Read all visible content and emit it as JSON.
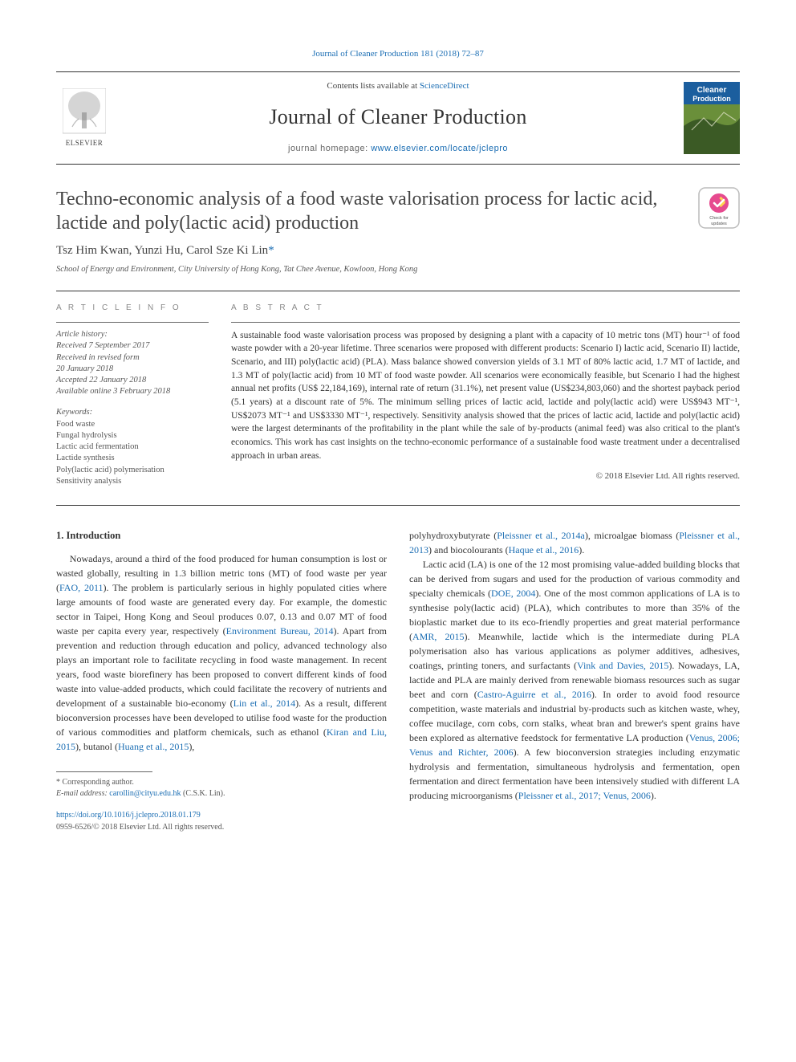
{
  "journal_ref": {
    "text": "Journal of Cleaner Production 181 (2018) 72–87",
    "link_color": "#1a6db3"
  },
  "header": {
    "contents_text": "Contents lists available at ",
    "contents_link": "ScienceDirect",
    "journal_name": "Journal of Cleaner Production",
    "homepage_label": "journal homepage: ",
    "homepage_url": "www.elsevier.com/locate/jclepro",
    "publisher_logo_text": "ELSEVIER",
    "cover": {
      "title_top": "Cleaner",
      "title_bottom": "Production",
      "bg_top": "#1b5e9e",
      "bg_mid": "#6a8f3a",
      "bg_bot": "#3b5a25"
    }
  },
  "title": "Techno-economic analysis of a food waste valorisation process for lactic acid, lactide and poly(lactic acid) production",
  "updates_badge_text": "Check for updates",
  "authors": "Tsz Him Kwan, Yunzi Hu, Carol Sze Ki Lin",
  "corr_marker": "*",
  "affiliation": "School of Energy and Environment, City University of Hong Kong, Tat Chee Avenue, Kowloon, Hong Kong",
  "article_info": {
    "heading": "a r t i c l e   i n f o",
    "history_label": "Article history:",
    "history": [
      "Received 7 September 2017",
      "Received in revised form",
      "20 January 2018",
      "Accepted 22 January 2018",
      "Available online 3 February 2018"
    ],
    "keywords_label": "Keywords:",
    "keywords": [
      "Food waste",
      "Fungal hydrolysis",
      "Lactic acid fermentation",
      "Lactide synthesis",
      "Poly(lactic acid) polymerisation",
      "Sensitivity analysis"
    ]
  },
  "abstract": {
    "heading": "a b s t r a c t",
    "text": "A sustainable food waste valorisation process was proposed by designing a plant with a capacity of 10 metric tons (MT) hour⁻¹ of food waste powder with a 20-year lifetime. Three scenarios were proposed with different products: Scenario I) lactic acid, Scenario II) lactide, Scenario, and III) poly(lactic acid) (PLA). Mass balance showed conversion yields of 3.1 MT of 80% lactic acid, 1.7 MT of lactide, and 1.3 MT of poly(lactic acid) from 10 MT of food waste powder. All scenarios were economically feasible, but Scenario I had the highest annual net profits (US$ 22,184,169), internal rate of return (31.1%), net present value (US$234,803,060) and the shortest payback period (5.1 years) at a discount rate of 5%. The minimum selling prices of lactic acid, lactide and poly(lactic acid) were US$943 MT⁻¹, US$2073 MT⁻¹ and US$3330 MT⁻¹, respectively. Sensitivity analysis showed that the prices of lactic acid, lactide and poly(lactic acid) were the largest determinants of the profitability in the plant while the sale of by-products (animal feed) was also critical to the plant's economics. This work has cast insights on the techno-economic performance of a sustainable food waste treatment under a decentralised approach in urban areas.",
    "copyright": "© 2018 Elsevier Ltd. All rights reserved."
  },
  "body": {
    "section_number": "1.",
    "section_title": "Introduction",
    "left_para": "Nowadays, around a third of the food produced for human consumption is lost or wasted globally, resulting in 1.3 billion metric tons (MT) of food waste per year (FAO, 2011). The problem is particularly serious in highly populated cities where large amounts of food waste are generated every day. For example, the domestic sector in Taipei, Hong Kong and Seoul produces 0.07, 0.13 and 0.07 MT of food waste per capita every year, respectively (Environment Bureau, 2014). Apart from prevention and reduction through education and policy, advanced technology also plays an important role to facilitate recycling in food waste management. In recent years, food waste biorefinery has been proposed to convert different kinds of food waste into value-added products, which could facilitate the recovery of nutrients and development of a sustainable bio-economy (Lin et al., 2014). As a result, different bioconversion processes have been developed to utilise food waste for the production of various commodities and platform chemicals, such as ethanol (Kiran and Liu, 2015), butanol (Huang et al., 2015),",
    "left_links": [
      "FAO, 2011",
      "Environment Bureau, 2014",
      "Lin et al., 2014",
      "Kiran and Liu, 2015",
      "Huang et al., 2015"
    ],
    "right_top": "polyhydroxybutyrate (Pleissner et al., 2014a), microalgae biomass (Pleissner et al., 2013) and biocolourants (Haque et al., 2016).",
    "right_para": "Lactic acid (LA) is one of the 12 most promising value-added building blocks that can be derived from sugars and used for the production of various commodity and specialty chemicals (DOE, 2004). One of the most common applications of LA is to synthesise poly(lactic acid) (PLA), which contributes to more than 35% of the bioplastic market due to its eco-friendly properties and great material performance (AMR, 2015). Meanwhile, lactide which is the intermediate during PLA polymerisation also has various applications as polymer additives, adhesives, coatings, printing toners, and surfactants (Vink and Davies, 2015). Nowadays, LA, lactide and PLA are mainly derived from renewable biomass resources such as sugar beet and corn (Castro-Aguirre et al., 2016). In order to avoid food resource competition, waste materials and industrial by-products such as kitchen waste, whey, coffee mucilage, corn cobs, corn stalks, wheat bran and brewer's spent grains have been explored as alternative feedstock for fermentative LA production (Venus, 2006; Venus and Richter, 2006). A few bioconversion strategies including enzymatic hydrolysis and fermentation, simultaneous hydrolysis and fermentation, open fermentation and direct fermentation have been intensively studied with different LA producing microorganisms (Pleissner et al., 2017; Venus, 2006).",
    "right_links": [
      "Pleissner et al., 2014a",
      "Pleissner et al., 2013",
      "Haque et al., 2016",
      "DOE, 2004",
      "AMR, 2015",
      "Vink and Davies, 2015",
      "Castro-Aguirre et al., 2016",
      "Venus, 2006; Venus and Richter, 2006",
      "Pleissner et al., 2017; Venus, 2006"
    ]
  },
  "footer": {
    "corr_label": "* Corresponding author.",
    "email_label": "E-mail address: ",
    "email": "carollin@cityu.edu.hk",
    "email_suffix": " (C.S.K. Lin).",
    "doi": "https://doi.org/10.1016/j.jclepro.2018.01.179",
    "issn": "0959-6526/© 2018 Elsevier Ltd. All rights reserved."
  },
  "colors": {
    "link": "#1a6db3",
    "text": "#333333",
    "muted": "#555555",
    "rule": "#333333"
  }
}
